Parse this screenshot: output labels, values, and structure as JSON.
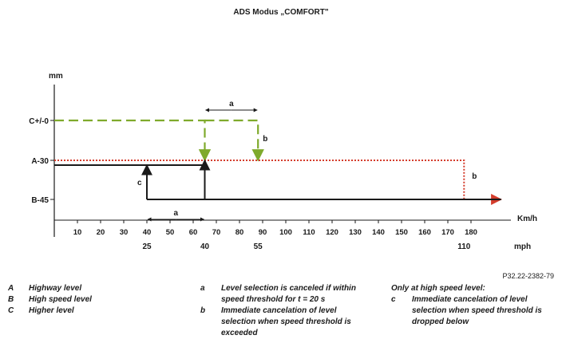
{
  "title": "ADS Modus „COMFORT\"",
  "figure_code": "P32.22-2382-79",
  "y_unit": "mm",
  "x_unit_kmh": "Km/h",
  "x_unit_mph": "mph",
  "colors": {
    "green": "#7faa2c",
    "red": "#d43c2c",
    "black": "#1a1a1a"
  },
  "chart_data": {
    "type": "line",
    "title": "ADS Modus „COMFORT\"",
    "ylabel": "mm",
    "xlabel": "Km/h",
    "y_levels": [
      {
        "label": "C+/-0",
        "value": 0
      },
      {
        "label": "A-30",
        "value": -30
      },
      {
        "label": "B-45",
        "value": -45
      }
    ],
    "x_ticks_kmh": [
      "10",
      "20",
      "30",
      "40",
      "50",
      "60",
      "70",
      "80",
      "90",
      "100",
      "110",
      "120",
      "130",
      "140",
      "150",
      "160",
      "170",
      "180"
    ],
    "x_ticks_mph": [
      {
        "kmh": 40,
        "label": "25"
      },
      {
        "kmh": 65,
        "label": "40"
      },
      {
        "kmh": 88,
        "label": "55"
      },
      {
        "kmh": 177,
        "label": "110"
      }
    ],
    "xlim": [
      0,
      195
    ],
    "series": [
      {
        "style": "green-dashed",
        "points": [
          [
            0,
            0
          ],
          [
            65,
            0
          ],
          [
            65,
            -30
          ]
        ]
      },
      {
        "style": "green-dashed",
        "points": [
          [
            65,
            0
          ],
          [
            88,
            0
          ],
          [
            88,
            -30
          ]
        ]
      },
      {
        "style": "red-dotted",
        "points": [
          [
            0,
            -30
          ],
          [
            177,
            -30
          ],
          [
            177,
            -45
          ],
          [
            193,
            -45
          ]
        ]
      },
      {
        "style": "black-solid",
        "points": [
          [
            0,
            -32
          ],
          [
            65,
            -32
          ]
        ]
      },
      {
        "style": "black-solid",
        "points": [
          [
            40,
            -45
          ],
          [
            193,
            -45
          ]
        ]
      },
      {
        "style": "black-arrow",
        "points": [
          [
            40,
            -45
          ],
          [
            40,
            -32
          ]
        ]
      },
      {
        "style": "black-arrow",
        "points": [
          [
            65,
            -45
          ],
          [
            65,
            -30
          ]
        ]
      }
    ],
    "annotations": [
      {
        "label": "a",
        "from_kmh": 65,
        "to_kmh": 88,
        "row": "upper"
      },
      {
        "label": "b",
        "at_kmh": 88
      },
      {
        "label": "b",
        "at_kmh": 177
      },
      {
        "label": "c",
        "at_kmh": 40
      },
      {
        "label": "a",
        "from_kmh": 40,
        "to_kmh": 65,
        "row": "lower"
      }
    ]
  },
  "legend": {
    "levels": [
      {
        "key": "A",
        "text": "Highway level"
      },
      {
        "key": "B",
        "text": "High speed level"
      },
      {
        "key": "C",
        "text": "Higher level"
      }
    ],
    "middle": {
      "a_key": "a",
      "a_text": "Level selection is canceled if within speed threshold for t = 20 s",
      "b_key": "b",
      "b_text": "Immediate cancelation of level selection when speed threshold is exceeded"
    },
    "right": {
      "heading": "Only at high speed level:",
      "c_key": "c",
      "c_text": "Immediate cancelation of level selection when speed threshold is dropped below"
    }
  }
}
